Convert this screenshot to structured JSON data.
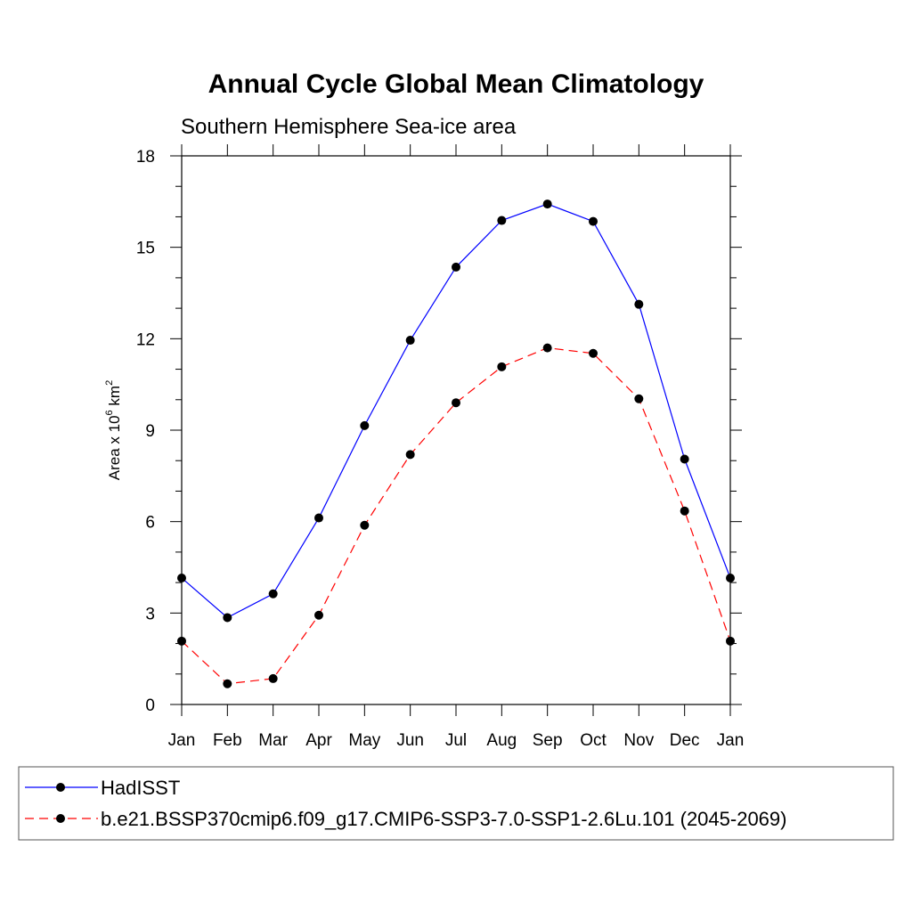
{
  "chart_data": {
    "type": "line",
    "title": "Annual Cycle Global Mean Climatology",
    "subtitle": "Southern Hemisphere Sea-ice area",
    "ylabel": {
      "prefix": "Area x 10",
      "exp1": "6",
      "mid": " km",
      "exp2": "2"
    },
    "xlabel": "",
    "categories": [
      "Jan",
      "Feb",
      "Mar",
      "Apr",
      "May",
      "Jun",
      "Jul",
      "Aug",
      "Sep",
      "Oct",
      "Nov",
      "Dec",
      "Jan"
    ],
    "ylim": [
      0,
      18
    ],
    "yticks": [
      0,
      3,
      6,
      9,
      12,
      15,
      18
    ],
    "ytick_labels": [
      "0",
      "3",
      "6",
      "9",
      "12",
      "15",
      "18"
    ],
    "grid": false,
    "legend_position": "bottom",
    "series": [
      {
        "name": "HadISST",
        "color": "#0000ff",
        "style": "solid",
        "values": [
          4.15,
          2.85,
          3.63,
          6.12,
          9.15,
          11.95,
          14.35,
          15.88,
          16.42,
          15.85,
          13.13,
          8.05,
          4.15
        ]
      },
      {
        "name": "b.e21.BSSP370cmip6.f09_g17.CMIP6-SSP3-7.0-SSP1-2.6Lu.101 (2045-2069)",
        "color": "#ff0000",
        "style": "dashed",
        "values": [
          2.08,
          0.68,
          0.85,
          2.93,
          5.88,
          8.2,
          9.9,
          11.08,
          11.7,
          11.52,
          10.03,
          6.35,
          2.08
        ]
      }
    ]
  }
}
